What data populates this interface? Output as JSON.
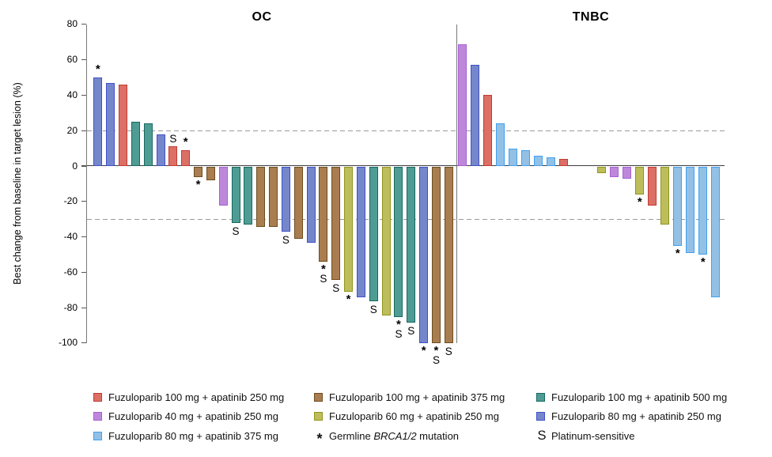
{
  "chart_data": {
    "type": "bar",
    "subtype": "waterfall",
    "title": "",
    "ylabel": "Best change from baseline in target lesion (%)",
    "ylim": [
      -100,
      80
    ],
    "yticks": [
      80,
      60,
      40,
      20,
      0,
      -20,
      -40,
      -60,
      -80,
      -100
    ],
    "reference_lines": [
      20,
      -30
    ],
    "grid": "dashed reference lines at +20 and -30 only",
    "legend_position": "bottom",
    "groups": {
      "f100a250": {
        "label": "Fuzuloparib 100 mg + apatinib 250 mg",
        "fill": "#dc6f66",
        "border": "#c13c34"
      },
      "f40a250": {
        "label": "Fuzuloparib 40 mg + apatinib 250 mg",
        "fill": "#be88da",
        "border": "#a75fd6"
      },
      "f80a375": {
        "label": "Fuzuloparib 80 mg + apatinib 375 mg",
        "fill": "#93c0e5",
        "border": "#42a0ef"
      },
      "f100a375": {
        "label": "Fuzuloparib 100 mg + apatinib 375 mg",
        "fill": "#a97d4f",
        "border": "#6e4d1e"
      },
      "f60a250": {
        "label": "Fuzuloparib 60 mg + apatinib 250 mg",
        "fill": "#bdbe5b",
        "border": "#91941f"
      },
      "f100a500": {
        "label": "Fuzuloparib 100 mg + apatinib 500 mg",
        "fill": "#4f9c94",
        "border": "#17695f"
      },
      "f80a250": {
        "label": "Fuzuloparib 80 mg + apatinib 250 mg",
        "fill": "#7587cb",
        "border": "#4050c8"
      }
    },
    "marker_meanings": {
      "*": "Germline BRCA1/2 mutation",
      "S": "Platinum-sensitive"
    },
    "panels": [
      {
        "title": "OC",
        "bars": [
          {
            "value": 50,
            "group": "f80a250",
            "marks": "*"
          },
          {
            "value": 47,
            "group": "f80a250",
            "marks": ""
          },
          {
            "value": 46,
            "group": "f100a250",
            "marks": ""
          },
          {
            "value": 25,
            "group": "f100a500",
            "marks": ""
          },
          {
            "value": 24,
            "group": "f100a500",
            "marks": ""
          },
          {
            "value": 18,
            "group": "f80a250",
            "marks": ""
          },
          {
            "value": 11,
            "group": "f100a250",
            "marks": "S"
          },
          {
            "value": 9,
            "group": "f100a250",
            "marks": "*"
          },
          {
            "value": -6,
            "group": "f100a375",
            "marks": "*"
          },
          {
            "value": -8,
            "group": "f100a375",
            "marks": ""
          },
          {
            "value": -22,
            "group": "f40a250",
            "marks": ""
          },
          {
            "value": -32,
            "group": "f100a500",
            "marks": "S"
          },
          {
            "value": -33,
            "group": "f100a500",
            "marks": ""
          },
          {
            "value": -34,
            "group": "f100a375",
            "marks": ""
          },
          {
            "value": -34,
            "group": "f100a375",
            "marks": ""
          },
          {
            "value": -37,
            "group": "f80a250",
            "marks": "S"
          },
          {
            "value": -41,
            "group": "f100a375",
            "marks": ""
          },
          {
            "value": -43,
            "group": "f80a250",
            "marks": ""
          },
          {
            "value": -54,
            "group": "f100a375",
            "marks": "*S"
          },
          {
            "value": -64,
            "group": "f100a375",
            "marks": "S"
          },
          {
            "value": -71,
            "group": "f60a250",
            "marks": "*"
          },
          {
            "value": -74,
            "group": "f80a250",
            "marks": ""
          },
          {
            "value": -76,
            "group": "f100a500",
            "marks": "S"
          },
          {
            "value": -84,
            "group": "f60a250",
            "marks": ""
          },
          {
            "value": -85,
            "group": "f100a500",
            "marks": "*S"
          },
          {
            "value": -88,
            "group": "f100a500",
            "marks": "S"
          },
          {
            "value": -100,
            "group": "f80a250",
            "marks": "*"
          },
          {
            "value": -100,
            "group": "f100a375",
            "marks": "*S"
          },
          {
            "value": -100,
            "group": "f100a375",
            "marks": "S"
          }
        ]
      },
      {
        "title": "TNBC",
        "bars": [
          {
            "value": 69,
            "group": "f40a250",
            "marks": ""
          },
          {
            "value": 57,
            "group": "f80a250",
            "marks": ""
          },
          {
            "value": 40,
            "group": "f100a250",
            "marks": ""
          },
          {
            "value": 24,
            "group": "f80a375",
            "marks": ""
          },
          {
            "value": 10,
            "group": "f80a375",
            "marks": ""
          },
          {
            "value": 9,
            "group": "f80a375",
            "marks": ""
          },
          {
            "value": 6,
            "group": "f80a375",
            "marks": ""
          },
          {
            "value": 5,
            "group": "f80a375",
            "marks": ""
          },
          {
            "value": 4,
            "group": "f100a250",
            "marks": ""
          },
          {
            "value": 0,
            "group": null,
            "marks": ""
          },
          {
            "value": 0,
            "group": null,
            "marks": ""
          },
          {
            "value": -4,
            "group": "f60a250",
            "marks": ""
          },
          {
            "value": -6,
            "group": "f40a250",
            "marks": ""
          },
          {
            "value": -7,
            "group": "f40a250",
            "marks": ""
          },
          {
            "value": -16,
            "group": "f60a250",
            "marks": "*"
          },
          {
            "value": -22,
            "group": "f100a250",
            "marks": ""
          },
          {
            "value": -33,
            "group": "f60a250",
            "marks": ""
          },
          {
            "value": -45,
            "group": "f80a375",
            "marks": "*"
          },
          {
            "value": -49,
            "group": "f80a375",
            "marks": ""
          },
          {
            "value": -50,
            "group": "f80a375",
            "marks": "*"
          },
          {
            "value": -74,
            "group": "f80a375",
            "marks": ""
          }
        ]
      }
    ]
  },
  "legend": {
    "columns": [
      {
        "items": [
          {
            "swatch": "f100a250",
            "label": "Fuzuloparib 100 mg + apatinib 250 mg"
          },
          {
            "swatch": "f40a250",
            "label": "Fuzuloparib 40 mg + apatinib 250 mg"
          },
          {
            "swatch": "f80a375",
            "label": "Fuzuloparib 80 mg + apatinib 375 mg"
          }
        ]
      },
      {
        "items": [
          {
            "swatch": "f100a375",
            "label": "Fuzuloparib 100 mg + apatinib 375 mg"
          },
          {
            "swatch": "f60a250",
            "label": "Fuzuloparib 60 mg + apatinib 250 mg"
          },
          {
            "marker": "*",
            "label_pre": "Germline ",
            "label_italic": "BRCA1/2",
            "label_post": " mutation"
          }
        ]
      },
      {
        "items": [
          {
            "swatch": "f100a500",
            "label": "Fuzuloparib 100 mg + apatinib 500 mg"
          },
          {
            "swatch": "f80a250",
            "label": "Fuzuloparib 80 mg + apatinib 250 mg"
          },
          {
            "marker": "S",
            "label": "Platinum-sensitive"
          }
        ]
      }
    ]
  }
}
